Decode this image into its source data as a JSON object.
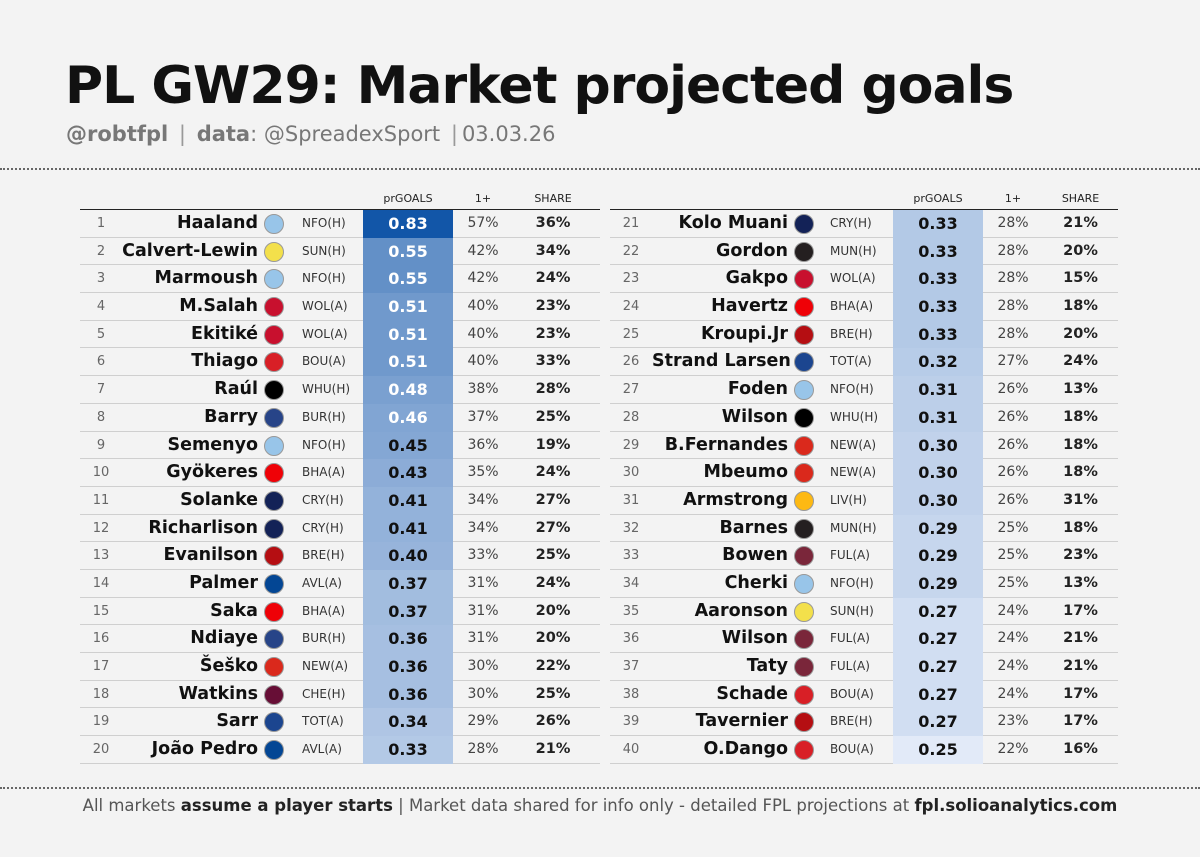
{
  "title": "PL GW29: Market projected goals",
  "subtitle": {
    "handle": "@robtfpl",
    "sep1": "|",
    "data_label": "data",
    "data_source": ": @SpreadexSport",
    "sep2": "|",
    "date": "03.03.26"
  },
  "columns": {
    "prgoals": "prGOALS",
    "one_plus": "1+",
    "share": "SHARE"
  },
  "footer": {
    "part1": "All markets ",
    "part2": "assume a player starts",
    "part3": " |  Market data shared for info only - detailed FPL projections at ",
    "part4": "fpl.solioanalytics.com"
  },
  "team_colors": {
    "MCI": "#98c5e9",
    "LEE": "#f3e04b",
    "LIV": "#c8102e",
    "BRE": "#d81f26",
    "FUL": "#000000",
    "EVE": "#274488",
    "ARS": "#ef0107",
    "TOT": "#132257",
    "BOU": "#b50e12",
    "CHE": "#034694",
    "MUN": "#da291c",
    "AVL": "#670e36",
    "CRY": "#1b458f",
    "NEW": "#241f20",
    "WOL": "#fdb913",
    "WHU": "#7a263a"
  },
  "players": [
    {
      "rank": "1",
      "name": "Haaland",
      "team": "MCI",
      "fixture": "NFO(H)",
      "prgoals": "0.83",
      "p": 0.83,
      "one": "57%",
      "share": "36%"
    },
    {
      "rank": "2",
      "name": "Calvert-Lewin",
      "team": "LEE",
      "fixture": "SUN(H)",
      "prgoals": "0.55",
      "p": 0.55,
      "one": "42%",
      "share": "34%"
    },
    {
      "rank": "3",
      "name": "Marmoush",
      "team": "MCI",
      "fixture": "NFO(H)",
      "prgoals": "0.55",
      "p": 0.55,
      "one": "42%",
      "share": "24%"
    },
    {
      "rank": "4",
      "name": "M.Salah",
      "team": "LIV",
      "fixture": "WOL(A)",
      "prgoals": "0.51",
      "p": 0.51,
      "one": "40%",
      "share": "23%"
    },
    {
      "rank": "5",
      "name": "Ekitiké",
      "team": "LIV",
      "fixture": "WOL(A)",
      "prgoals": "0.51",
      "p": 0.51,
      "one": "40%",
      "share": "23%"
    },
    {
      "rank": "6",
      "name": "Thiago",
      "team": "BRE",
      "fixture": "BOU(A)",
      "prgoals": "0.51",
      "p": 0.51,
      "one": "40%",
      "share": "33%"
    },
    {
      "rank": "7",
      "name": "Raúl",
      "team": "FUL",
      "fixture": "WHU(H)",
      "prgoals": "0.48",
      "p": 0.48,
      "one": "38%",
      "share": "28%"
    },
    {
      "rank": "8",
      "name": "Barry",
      "team": "EVE",
      "fixture": "BUR(H)",
      "prgoals": "0.46",
      "p": 0.46,
      "one": "37%",
      "share": "25%"
    },
    {
      "rank": "9",
      "name": "Semenyo",
      "team": "MCI",
      "fixture": "NFO(H)",
      "prgoals": "0.45",
      "p": 0.45,
      "one": "36%",
      "share": "19%"
    },
    {
      "rank": "10",
      "name": "Gyökeres",
      "team": "ARS",
      "fixture": "BHA(A)",
      "prgoals": "0.43",
      "p": 0.43,
      "one": "35%",
      "share": "24%"
    },
    {
      "rank": "11",
      "name": "Solanke",
      "team": "TOT",
      "fixture": "CRY(H)",
      "prgoals": "0.41",
      "p": 0.41,
      "one": "34%",
      "share": "27%"
    },
    {
      "rank": "12",
      "name": "Richarlison",
      "team": "TOT",
      "fixture": "CRY(H)",
      "prgoals": "0.41",
      "p": 0.41,
      "one": "34%",
      "share": "27%"
    },
    {
      "rank": "13",
      "name": "Evanilson",
      "team": "BOU",
      "fixture": "BRE(H)",
      "prgoals": "0.40",
      "p": 0.4,
      "one": "33%",
      "share": "25%"
    },
    {
      "rank": "14",
      "name": "Palmer",
      "team": "CHE",
      "fixture": "AVL(A)",
      "prgoals": "0.37",
      "p": 0.37,
      "one": "31%",
      "share": "24%"
    },
    {
      "rank": "15",
      "name": "Saka",
      "team": "ARS",
      "fixture": "BHA(A)",
      "prgoals": "0.37",
      "p": 0.37,
      "one": "31%",
      "share": "20%"
    },
    {
      "rank": "16",
      "name": "Ndiaye",
      "team": "EVE",
      "fixture": "BUR(H)",
      "prgoals": "0.36",
      "p": 0.36,
      "one": "31%",
      "share": "20%"
    },
    {
      "rank": "17",
      "name": "Šeško",
      "team": "MUN",
      "fixture": "NEW(A)",
      "prgoals": "0.36",
      "p": 0.36,
      "one": "30%",
      "share": "22%"
    },
    {
      "rank": "18",
      "name": "Watkins",
      "team": "AVL",
      "fixture": "CHE(H)",
      "prgoals": "0.36",
      "p": 0.36,
      "one": "30%",
      "share": "25%"
    },
    {
      "rank": "19",
      "name": "Sarr",
      "team": "CRY",
      "fixture": "TOT(A)",
      "prgoals": "0.34",
      "p": 0.34,
      "one": "29%",
      "share": "26%"
    },
    {
      "rank": "20",
      "name": "João Pedro",
      "team": "CHE",
      "fixture": "AVL(A)",
      "prgoals": "0.33",
      "p": 0.33,
      "one": "28%",
      "share": "21%"
    },
    {
      "rank": "21",
      "name": "Kolo Muani",
      "team": "TOT",
      "fixture": "CRY(H)",
      "prgoals": "0.33",
      "p": 0.33,
      "one": "28%",
      "share": "21%"
    },
    {
      "rank": "22",
      "name": "Gordon",
      "team": "NEW",
      "fixture": "MUN(H)",
      "prgoals": "0.33",
      "p": 0.33,
      "one": "28%",
      "share": "20%"
    },
    {
      "rank": "23",
      "name": "Gakpo",
      "team": "LIV",
      "fixture": "WOL(A)",
      "prgoals": "0.33",
      "p": 0.33,
      "one": "28%",
      "share": "15%"
    },
    {
      "rank": "24",
      "name": "Havertz",
      "team": "ARS",
      "fixture": "BHA(A)",
      "prgoals": "0.33",
      "p": 0.33,
      "one": "28%",
      "share": "18%"
    },
    {
      "rank": "25",
      "name": "Kroupi.Jr",
      "team": "BOU",
      "fixture": "BRE(H)",
      "prgoals": "0.33",
      "p": 0.33,
      "one": "28%",
      "share": "20%"
    },
    {
      "rank": "26",
      "name": "Strand Larsen",
      "team": "CRY",
      "fixture": "TOT(A)",
      "prgoals": "0.32",
      "p": 0.32,
      "one": "27%",
      "share": "24%"
    },
    {
      "rank": "27",
      "name": "Foden",
      "team": "MCI",
      "fixture": "NFO(H)",
      "prgoals": "0.31",
      "p": 0.31,
      "one": "26%",
      "share": "13%"
    },
    {
      "rank": "28",
      "name": "Wilson",
      "team": "FUL",
      "fixture": "WHU(H)",
      "prgoals": "0.31",
      "p": 0.31,
      "one": "26%",
      "share": "18%"
    },
    {
      "rank": "29",
      "name": "B.Fernandes",
      "team": "MUN",
      "fixture": "NEW(A)",
      "prgoals": "0.30",
      "p": 0.3,
      "one": "26%",
      "share": "18%"
    },
    {
      "rank": "30",
      "name": "Mbeumo",
      "team": "MUN",
      "fixture": "NEW(A)",
      "prgoals": "0.30",
      "p": 0.3,
      "one": "26%",
      "share": "18%"
    },
    {
      "rank": "31",
      "name": "Armstrong",
      "team": "WOL",
      "fixture": "LIV(H)",
      "prgoals": "0.30",
      "p": 0.3,
      "one": "26%",
      "share": "31%"
    },
    {
      "rank": "32",
      "name": "Barnes",
      "team": "NEW",
      "fixture": "MUN(H)",
      "prgoals": "0.29",
      "p": 0.29,
      "one": "25%",
      "share": "18%"
    },
    {
      "rank": "33",
      "name": "Bowen",
      "team": "WHU",
      "fixture": "FUL(A)",
      "prgoals": "0.29",
      "p": 0.29,
      "one": "25%",
      "share": "23%"
    },
    {
      "rank": "34",
      "name": "Cherki",
      "team": "MCI",
      "fixture": "NFO(H)",
      "prgoals": "0.29",
      "p": 0.29,
      "one": "25%",
      "share": "13%"
    },
    {
      "rank": "35",
      "name": "Aaronson",
      "team": "LEE",
      "fixture": "SUN(H)",
      "prgoals": "0.27",
      "p": 0.27,
      "one": "24%",
      "share": "17%"
    },
    {
      "rank": "36",
      "name": "Wilson",
      "team": "WHU",
      "fixture": "FUL(A)",
      "prgoals": "0.27",
      "p": 0.27,
      "one": "24%",
      "share": "21%"
    },
    {
      "rank": "37",
      "name": "Taty",
      "team": "WHU",
      "fixture": "FUL(A)",
      "prgoals": "0.27",
      "p": 0.27,
      "one": "24%",
      "share": "21%"
    },
    {
      "rank": "38",
      "name": "Schade",
      "team": "BRE",
      "fixture": "BOU(A)",
      "prgoals": "0.27",
      "p": 0.27,
      "one": "24%",
      "share": "17%"
    },
    {
      "rank": "39",
      "name": "Tavernier",
      "team": "BOU",
      "fixture": "BRE(H)",
      "prgoals": "0.27",
      "p": 0.27,
      "one": "23%",
      "share": "17%"
    },
    {
      "rank": "40",
      "name": "O.Dango",
      "team": "BRE",
      "fixture": "BOU(A)",
      "prgoals": "0.25",
      "p": 0.25,
      "one": "22%",
      "share": "16%"
    }
  ]
}
